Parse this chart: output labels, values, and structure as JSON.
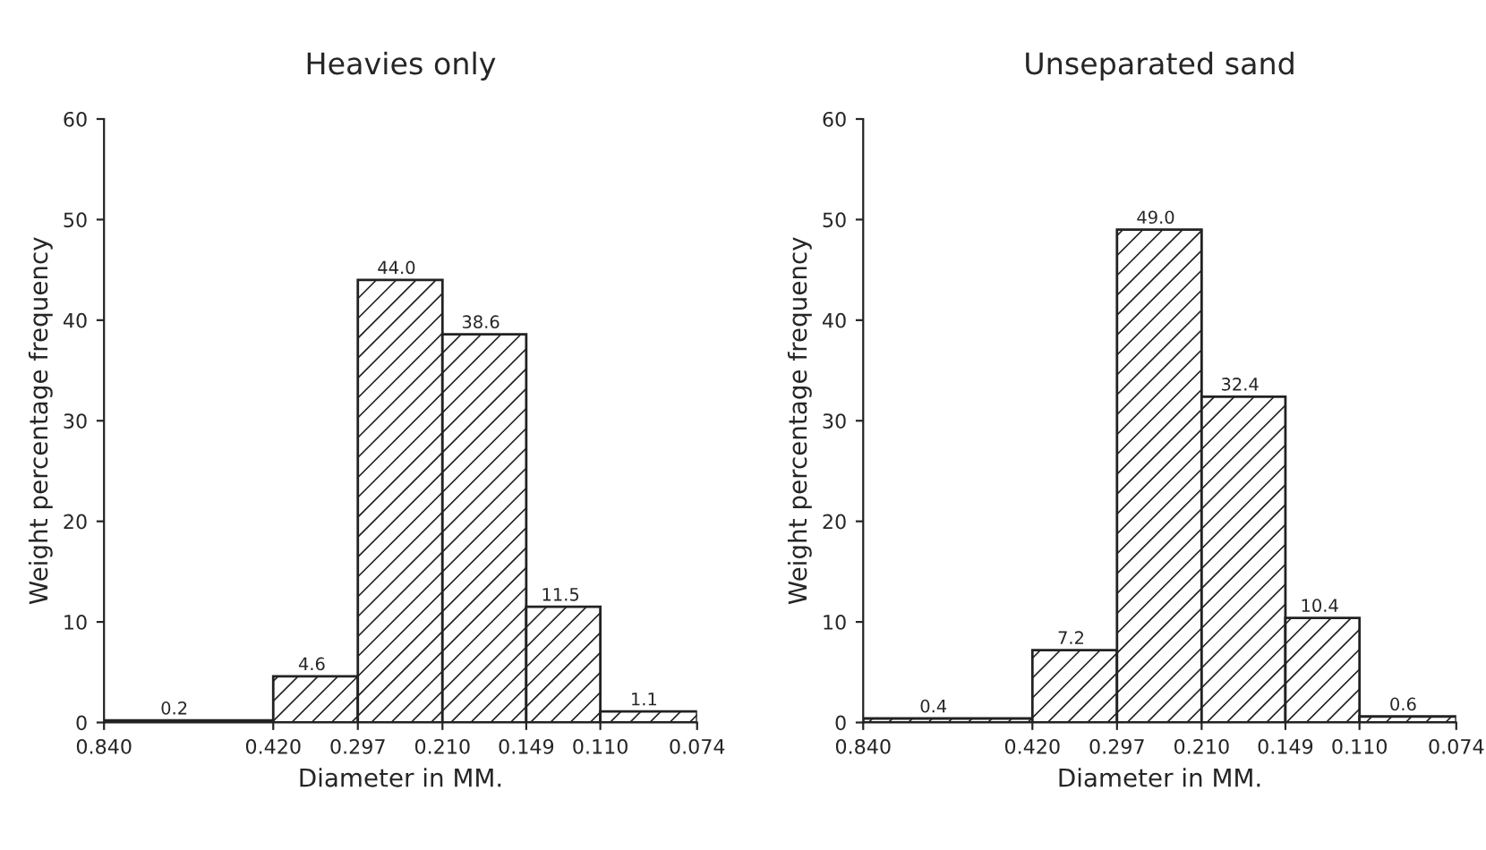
{
  "chart_data": [
    {
      "type": "histogram",
      "title": "Heavies only",
      "xlabel": "Diameter in MM.",
      "ylabel": "Weight percentage frequency",
      "log": "x",
      "bins": [
        0.84,
        0.42,
        0.297,
        0.21,
        0.149,
        0.11,
        0.074
      ],
      "values": [
        0.2,
        4.6,
        44.0,
        38.6,
        11.5,
        1.1
      ],
      "value_labels": [
        "0.2",
        "4.6",
        "44.0",
        "38.6",
        "11.5",
        "1.1"
      ],
      "xlim": [
        0.84,
        0.074
      ],
      "xticks": [
        {
          "value": 0.84,
          "label": "0.840"
        },
        {
          "value": 0.42,
          "label": "0.420"
        },
        {
          "value": 0.297,
          "label": "0.297"
        },
        {
          "value": 0.21,
          "label": "0.210"
        },
        {
          "value": 0.149,
          "label": "0.149"
        },
        {
          "value": 0.11,
          "label": "0.110"
        },
        {
          "value": 0.074,
          "label": "0.074"
        }
      ],
      "ylim": [
        0,
        60
      ],
      "yticks": [
        0,
        10,
        20,
        30,
        40,
        50,
        60
      ]
    },
    {
      "type": "histogram",
      "title": "Unseparated sand",
      "xlabel": "Diameter in MM.",
      "ylabel": "Weight percentage frequency",
      "log": "x",
      "bins": [
        0.84,
        0.42,
        0.297,
        0.21,
        0.149,
        0.11,
        0.074
      ],
      "values": [
        0.4,
        7.2,
        49.0,
        32.4,
        10.4,
        0.6
      ],
      "value_labels": [
        "0.4",
        "7.2",
        "49.0",
        "32.4",
        "10.4",
        "0.6"
      ],
      "xlim": [
        0.84,
        0.074
      ],
      "xticks": [
        {
          "value": 0.84,
          "label": "0.840"
        },
        {
          "value": 0.42,
          "label": "0.420"
        },
        {
          "value": 0.297,
          "label": "0.297"
        },
        {
          "value": 0.21,
          "label": "0.210"
        },
        {
          "value": 0.149,
          "label": "0.149"
        },
        {
          "value": 0.11,
          "label": "0.110"
        },
        {
          "value": 0.074,
          "label": "0.074"
        }
      ],
      "ylim": [
        0,
        60
      ],
      "yticks": [
        0,
        10,
        20,
        30,
        40,
        50,
        60
      ]
    }
  ]
}
